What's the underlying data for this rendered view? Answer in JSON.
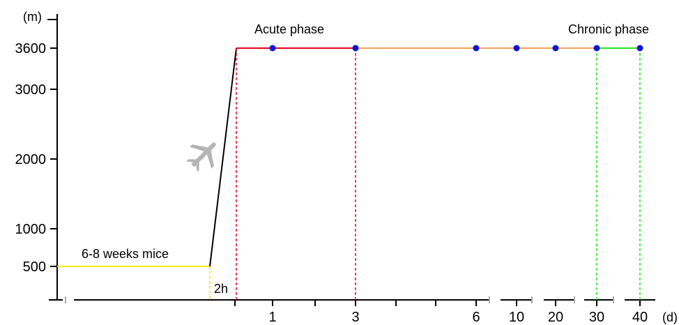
{
  "chart_data": {
    "type": "line",
    "ylabel": "(m)",
    "xlabel": "(d)",
    "y_ticks": [
      {
        "label": "500",
        "value": 500
      },
      {
        "label": "1000",
        "value": 1000
      },
      {
        "label": "2000",
        "value": 2000
      },
      {
        "label": "3000",
        "value": 3000
      },
      {
        "label": "3600",
        "value": 3600
      }
    ],
    "ylim": [
      0,
      3700
    ],
    "x_ticks": [
      {
        "label": "1",
        "value": 1
      },
      {
        "label": "3",
        "value": 3
      },
      {
        "label": "6",
        "value": 6
      },
      {
        "label": "10",
        "value": 10
      },
      {
        "label": "20",
        "value": 20
      },
      {
        "label": "30",
        "value": 30
      },
      {
        "label": "40",
        "value": 40
      }
    ],
    "axis_breaks": true,
    "segments": [
      {
        "name": "pre",
        "color": "#ffe600",
        "points": [
          {
            "x": "before",
            "y": 500
          },
          {
            "x": "-2h",
            "y": 500
          }
        ]
      },
      {
        "name": "ascent",
        "color": "#000000",
        "label": "2h",
        "points": [
          {
            "x": "-2h",
            "y": 500
          },
          {
            "x": 0,
            "y": 3600
          }
        ]
      },
      {
        "name": "acute",
        "color": "#e8001c",
        "points": [
          {
            "x": 0,
            "y": 3600
          },
          {
            "x": 3,
            "y": 3600
          }
        ]
      },
      {
        "name": "transition",
        "color": "#f5a05a",
        "points": [
          {
            "x": 3,
            "y": 3600
          },
          {
            "x": 30,
            "y": 3600
          }
        ]
      },
      {
        "name": "chronic",
        "color": "#22e61e",
        "points": [
          {
            "x": 30,
            "y": 3600
          },
          {
            "x": 40,
            "y": 3600
          }
        ]
      }
    ],
    "sample_points": [
      {
        "x": 1,
        "y": 3600
      },
      {
        "x": 3,
        "y": 3600
      },
      {
        "x": 6,
        "y": 3600
      },
      {
        "x": 10,
        "y": 3600
      },
      {
        "x": 20,
        "y": 3600
      },
      {
        "x": 30,
        "y": 3600
      },
      {
        "x": 40,
        "y": 3600
      }
    ],
    "annotations": {
      "acute": {
        "text": "Acute phase",
        "color": "#e8001c"
      },
      "chronic": {
        "text": "Chronic phase",
        "color": "#22e61e"
      },
      "mice": {
        "text": "6-8 weeks mice"
      },
      "duration": {
        "text": "2h"
      }
    },
    "icon": "airplane-icon",
    "colors": {
      "point": "#0a14d6",
      "axis": "#000000",
      "break": "#a8a8a8",
      "plane": "#b4b4b4"
    }
  }
}
